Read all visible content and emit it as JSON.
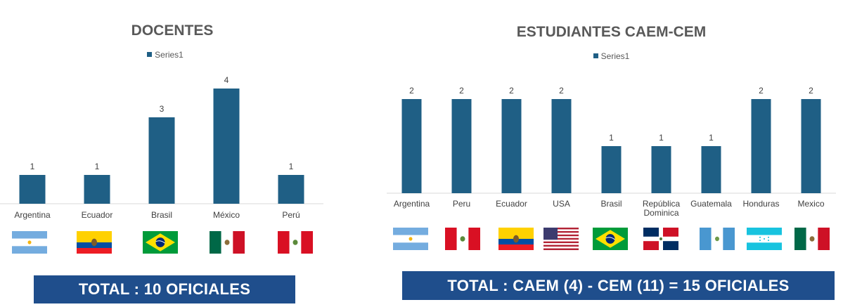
{
  "chart_data": [
    {
      "type": "bar",
      "title": "DOCENTES",
      "categories": [
        "Argentina",
        "Ecuador",
        "Brasil",
        "México",
        "Perú"
      ],
      "series": [
        {
          "name": "Series1",
          "values": [
            1,
            1,
            3,
            4,
            1
          ]
        }
      ],
      "ylim": [
        0,
        4
      ],
      "legend": "top",
      "grid": false,
      "data_labels": true,
      "color": "#1f5f85"
    },
    {
      "type": "bar",
      "title": "ESTUDIANTES CAEM-CEM",
      "categories": [
        "Argentina",
        "Peru",
        "Ecuador",
        "USA",
        "Brasil",
        "República Dominica",
        "Guatemala",
        "Honduras",
        "Mexico"
      ],
      "series": [
        {
          "name": "Series1",
          "values": [
            2,
            2,
            2,
            2,
            1,
            1,
            1,
            2,
            2
          ]
        }
      ],
      "ylim": [
        0,
        2
      ],
      "legend": "top",
      "grid": false,
      "data_labels": true,
      "color": "#1f5f85"
    }
  ],
  "flags": {
    "left": [
      "argentina-flag-icon",
      "ecuador-flag-icon",
      "brazil-flag-icon",
      "mexico-flag-icon",
      "peru-flag-icon"
    ],
    "right": [
      "argentina-flag-icon",
      "peru-flag-icon",
      "ecuador-flag-icon",
      "usa-flag-icon",
      "brazil-flag-icon",
      "dominican-republic-flag-icon",
      "guatemala-flag-icon",
      "honduras-flag-icon",
      "mexico-flag-icon"
    ]
  },
  "totals": {
    "left": "TOTAL  : 10 OFICIALES",
    "right": "TOTAL : CAEM (4) - CEM (11)   = 15 OFICIALES"
  }
}
